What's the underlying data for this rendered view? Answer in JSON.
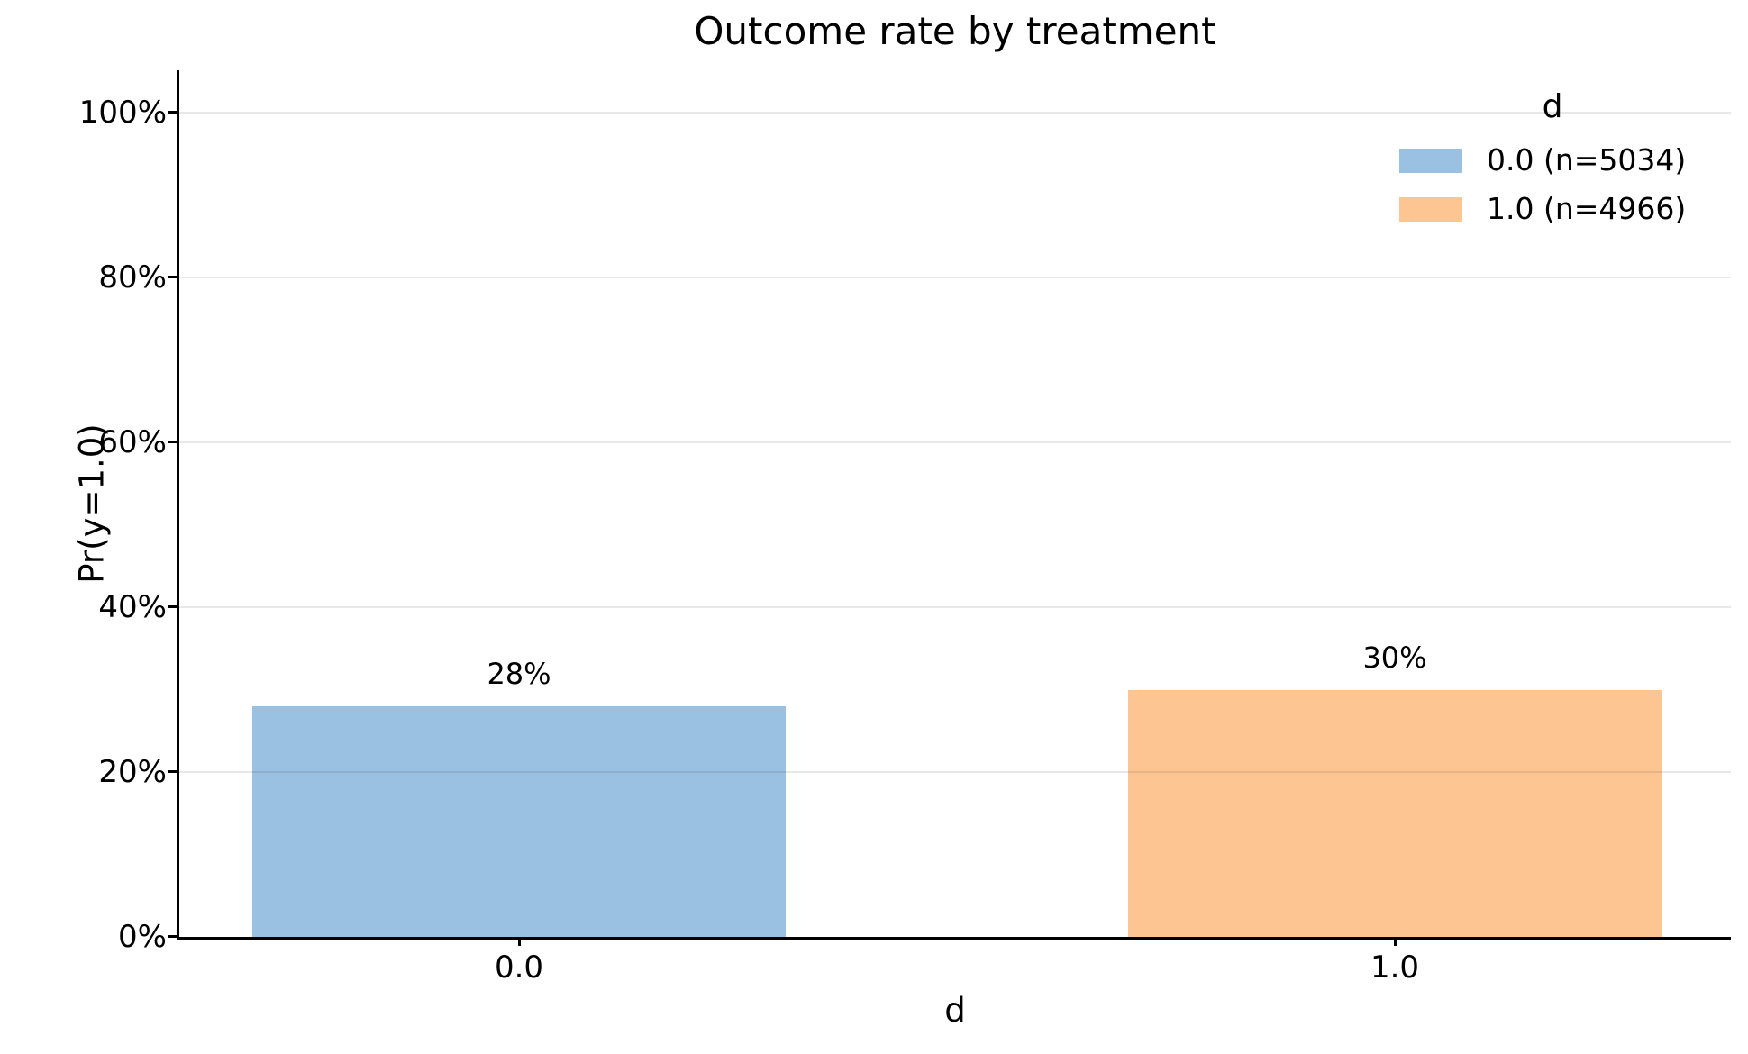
{
  "chart_data": {
    "type": "bar",
    "title": "Outcome rate by treatment",
    "xlabel": "d",
    "ylabel": "Pr(y=1.0)",
    "categories": [
      "0.0",
      "1.0"
    ],
    "series": [
      {
        "category": "0.0",
        "value_pct": 28,
        "bar_label": "28%",
        "legend_label": "0.0 (n=5034)",
        "n": 5034,
        "color": "#9ac1e1"
      },
      {
        "category": "1.0",
        "value_pct": 30,
        "bar_label": "30%",
        "legend_label": "1.0 (n=4966)",
        "n": 4966,
        "color": "#fdc591"
      }
    ],
    "legend": {
      "title": "d",
      "position": "upper-right",
      "frame": false
    },
    "y_axis": {
      "tick_values": [
        0,
        20,
        40,
        60,
        80,
        100
      ],
      "tick_labels": [
        "0%",
        "20%",
        "40%",
        "60%",
        "80%",
        "100%"
      ],
      "min_pct": 0,
      "max_pct": 105,
      "grid": true
    },
    "x_axis": {
      "tick_labels": [
        "0.0",
        "1.0"
      ]
    }
  }
}
